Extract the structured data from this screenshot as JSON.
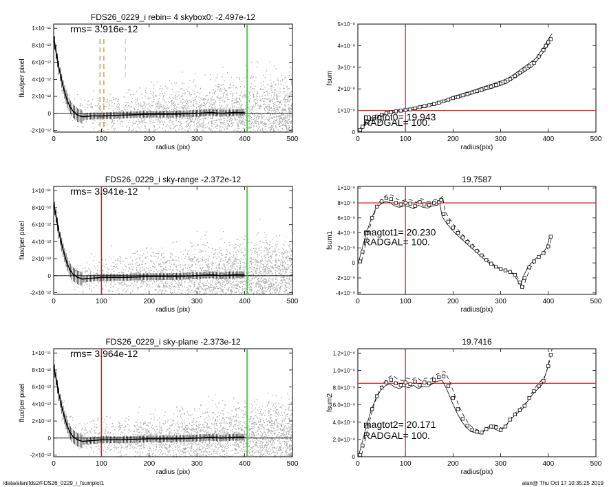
{
  "footer": {
    "path": "/data/alan/fds2/FDS26_0229_i_fsumplot1",
    "stamp": "alan@  Thu Oct 17 10:35:25 2019"
  },
  "colors": {
    "scatter": "#a8a8a8",
    "profile": "#000000",
    "red_line": "#e02020",
    "green_line": "#22cc22",
    "orange_dash": "#e8a050"
  },
  "chart_data": [
    {
      "id": "profile1",
      "type": "scatter",
      "title": "FDS26_0229_i rebin= 4    skybox0: -2.497e-12",
      "annotation": "rms= 3.916e-12",
      "xlabel": "radius (pix)",
      "ylabel": "flux/per pixel",
      "xlim": [
        0,
        500
      ],
      "ylim": [
        -2.2e-12,
        1.05e-11
      ],
      "xticks": [
        0,
        100,
        200,
        300,
        400,
        500
      ],
      "yticks": [
        -2e-12,
        0,
        2e-12,
        4e-12,
        6e-12,
        8e-12,
        1e-11
      ],
      "ytick_labels": [
        "-2×10⁻¹²",
        "0",
        "2×10⁻¹²",
        "4×10⁻¹²",
        "6×10⁻¹²",
        "8×10⁻¹²",
        "1×10⁻¹¹"
      ],
      "profile": {
        "x": [
          0,
          5,
          10,
          15,
          20,
          25,
          30,
          35,
          40,
          50,
          60,
          80,
          100,
          150,
          200,
          250,
          300,
          330,
          350,
          380,
          400
        ],
        "y": [
          9e-12,
          7.2e-12,
          5.6e-12,
          4.3e-12,
          3.1e-12,
          2.1e-12,
          1.3e-12,
          7e-13,
          3e-13,
          -2e-13,
          -4e-13,
          -3e-13,
          -3e-13,
          -2e-13,
          -1e-13,
          -1e-13,
          0,
          1e-13,
          0,
          1e-13,
          1e-13
        ]
      },
      "vlines": [
        {
          "x": 405,
          "color": "green",
          "style": "solid"
        },
        {
          "x": 97,
          "color": "orange",
          "style": "dashed"
        },
        {
          "x": 105,
          "color": "orange",
          "style": "dashed"
        },
        {
          "x": 150,
          "color": "gray",
          "style": "dashed"
        }
      ]
    },
    {
      "id": "fsum",
      "type": "scatter",
      "title": "",
      "xlabel": "radius(pix)",
      "ylabel": "fsum",
      "xlim": [
        0,
        500
      ],
      "ylim": [
        0,
        5e-08
      ],
      "xticks": [
        0,
        100,
        200,
        300,
        400,
        500
      ],
      "yticks": [
        0,
        1e-08,
        2e-08,
        3e-08,
        4e-08,
        5e-08
      ],
      "ytick_labels": [
        "0",
        "1×10⁻⁸",
        "2×10⁻⁸",
        "3×10⁻⁸",
        "4×10⁻⁸",
        "5×10⁻⁸"
      ],
      "text1": "magtot0=  19.943",
      "text2": "RADGAL=    100.",
      "points": {
        "x": [
          5,
          10,
          20,
          30,
          40,
          50,
          60,
          70,
          80,
          90,
          100,
          110,
          120,
          130,
          140,
          150,
          160,
          170,
          180,
          190,
          200,
          210,
          220,
          230,
          240,
          250,
          260,
          270,
          280,
          290,
          300,
          310,
          320,
          330,
          340,
          350,
          360,
          370,
          380,
          390,
          395,
          400,
          405
        ],
        "y": [
          1e-09,
          2.5e-09,
          4.5e-09,
          6e-09,
          7.2e-09,
          8e-09,
          8.7e-09,
          9.2e-09,
          9.6e-09,
          9.9e-09,
          1.02e-08,
          1.05e-08,
          1.1e-08,
          1.15e-08,
          1.2e-08,
          1.24e-08,
          1.3e-08,
          1.36e-08,
          1.42e-08,
          1.5e-08,
          1.58e-08,
          1.63e-08,
          1.7e-08,
          1.76e-08,
          1.83e-08,
          1.9e-08,
          1.97e-08,
          2.04e-08,
          2.1e-08,
          2.18e-08,
          2.25e-08,
          2.33e-08,
          2.45e-08,
          2.6e-08,
          2.75e-08,
          2.9e-08,
          3.05e-08,
          3.2e-08,
          3.5e-08,
          3.8e-08,
          4e-08,
          4.15e-08,
          4.3e-08
        ]
      },
      "hline": 1e-08,
      "vline": 100
    },
    {
      "id": "profile2",
      "type": "scatter",
      "title": "FDS26_0229_i sky-range -2.372e-12",
      "annotation": "rms= 3.941e-12",
      "xlabel": "radius (pix)",
      "ylabel": "flux/per pixel",
      "xlim": [
        0,
        500
      ],
      "ylim": [
        -2.2e-12,
        1.05e-11
      ],
      "xticks": [
        0,
        100,
        200,
        300,
        400,
        500
      ],
      "yticks": [
        -2e-12,
        0,
        2e-12,
        4e-12,
        6e-12,
        8e-12,
        1e-11
      ],
      "ytick_labels": [
        "-2×10⁻¹²",
        "0",
        "2×10⁻¹²",
        "4×10⁻¹²",
        "6×10⁻¹²",
        "8×10⁻¹²",
        "1×10⁻¹¹"
      ],
      "profile": {
        "x": [
          0,
          5,
          10,
          15,
          20,
          25,
          30,
          35,
          40,
          50,
          60,
          80,
          100,
          150,
          200,
          250,
          300,
          330,
          350,
          380,
          400
        ],
        "y": [
          8.5e-12,
          7e-12,
          5.4e-12,
          4.1e-12,
          3e-12,
          2e-12,
          1.2e-12,
          6e-13,
          2e-13,
          -2e-13,
          -4e-13,
          -3e-13,
          -2e-13,
          -2e-13,
          -1e-13,
          -1e-13,
          0,
          1e-13,
          0,
          1e-13,
          1e-13
        ]
      },
      "vlines": [
        {
          "x": 405,
          "color": "green",
          "style": "solid"
        },
        {
          "x": 100,
          "color": "red",
          "style": "solid"
        }
      ]
    },
    {
      "id": "fsum1",
      "type": "scatter",
      "title": "19.7587",
      "xlabel": "radius(pix)",
      "ylabel": "fsum1",
      "xlim": [
        0,
        500
      ],
      "ylim": [
        -4.2e-09,
        1.02e-08
      ],
      "xticks": [
        0,
        100,
        200,
        300,
        400,
        500
      ],
      "yticks": [
        -4e-09,
        -2e-09,
        0,
        2e-09,
        4e-09,
        6e-09,
        8e-09,
        1e-08
      ],
      "ytick_labels": [
        "-4×10⁻⁹",
        "-2×10⁻⁹",
        "0",
        "2×10⁻⁹",
        "4×10⁻⁹",
        "6×10⁻⁹",
        "8×10⁻⁹",
        "1×10⁻⁸"
      ],
      "text1": "magtot1=  20.230",
      "text2": "RADGAL=    100.",
      "points": {
        "x": [
          5,
          10,
          20,
          30,
          40,
          50,
          60,
          70,
          80,
          90,
          100,
          110,
          120,
          130,
          140,
          150,
          160,
          170,
          175,
          180,
          190,
          200,
          210,
          220,
          230,
          240,
          250,
          260,
          270,
          280,
          290,
          300,
          310,
          320,
          330,
          340,
          345,
          350,
          360,
          370,
          380,
          390,
          400,
          405
        ],
        "y": [
          2e-10,
          1.5e-09,
          4e-09,
          6e-09,
          7.5e-09,
          8.2e-09,
          8.6e-09,
          8.5e-09,
          8e-09,
          7.8e-09,
          8e-09,
          7.9e-09,
          7.6e-09,
          8.1e-09,
          7.8e-09,
          7.7e-09,
          8e-09,
          8.1e-09,
          8.4e-09,
          6.5e-09,
          5.5e-09,
          4.7e-09,
          4e-09,
          3.4e-09,
          2.8e-09,
          2.2e-09,
          1.6e-09,
          1e-09,
          4e-10,
          -1e-10,
          -5e-10,
          -8e-10,
          -1e-09,
          -1.2e-09,
          -1.6e-09,
          -2.6e-09,
          -3.2e-09,
          -2e-09,
          -6e-10,
          2e-10,
          8e-10,
          1.3e-09,
          2.2e-09,
          3.5e-09
        ]
      },
      "hline": 8e-09,
      "vline": 100
    },
    {
      "id": "profile3",
      "type": "scatter",
      "title": "FDS26_0229_i sky-plane -2.373e-12",
      "annotation": "rms= 3.964e-12",
      "xlabel": "radius (pix)",
      "ylabel": "flux/per pixel",
      "xlim": [
        0,
        500
      ],
      "ylim": [
        -2.2e-12,
        1.05e-11
      ],
      "xticks": [
        0,
        100,
        200,
        300,
        400,
        500
      ],
      "yticks": [
        -2e-12,
        0,
        2e-12,
        4e-12,
        6e-12,
        8e-12,
        1e-11
      ],
      "ytick_labels": [
        "-2×10⁻¹²",
        "0",
        "2×10⁻¹²",
        "4×10⁻¹²",
        "6×10⁻¹²",
        "8×10⁻¹²",
        "1×10⁻¹¹"
      ],
      "profile": {
        "x": [
          0,
          5,
          10,
          15,
          20,
          25,
          30,
          35,
          40,
          50,
          60,
          80,
          100,
          150,
          200,
          250,
          300,
          330,
          350,
          380,
          400
        ],
        "y": [
          8.5e-12,
          7e-12,
          5.4e-12,
          4.1e-12,
          3e-12,
          2e-12,
          1.2e-12,
          6e-13,
          2e-13,
          -2e-13,
          -4e-13,
          -3e-13,
          -2e-13,
          -2e-13,
          -1e-13,
          -1e-13,
          0,
          1e-13,
          0,
          1e-13,
          1e-13
        ]
      },
      "vlines": [
        {
          "x": 405,
          "color": "green",
          "style": "solid"
        },
        {
          "x": 100,
          "color": "red",
          "style": "solid"
        }
      ]
    },
    {
      "id": "fsum2",
      "type": "scatter",
      "title": "19.7416",
      "xlabel": "radius(pix)",
      "ylabel": "fsum2",
      "xlim": [
        0,
        500
      ],
      "ylim": [
        0,
        1.25e-08
      ],
      "xticks": [
        0,
        100,
        200,
        300,
        400,
        500
      ],
      "yticks": [
        0,
        2e-09,
        4e-09,
        6e-09,
        8e-09,
        1e-08,
        1.2e-08
      ],
      "ytick_labels": [
        "0",
        "2.0×10⁻⁹",
        "4.0×10⁻⁹",
        "6.0×10⁻⁹",
        "8.0×10⁻⁹",
        "1.0×10⁻⁸",
        "1.2×10⁻⁸"
      ],
      "text1": "magtot2=  20.171",
      "text2": "RADGAL=    100.",
      "points": {
        "x": [
          5,
          10,
          20,
          30,
          40,
          50,
          60,
          70,
          80,
          90,
          100,
          110,
          120,
          130,
          140,
          150,
          160,
          170,
          180,
          190,
          200,
          210,
          220,
          230,
          240,
          250,
          260,
          270,
          280,
          290,
          300,
          310,
          320,
          330,
          340,
          350,
          360,
          370,
          380,
          390,
          400,
          405
        ],
        "y": [
          2e-10,
          1.3e-09,
          3.5e-09,
          5.5e-09,
          7e-09,
          8e-09,
          8.6e-09,
          8.9e-09,
          8.5e-09,
          8.3e-09,
          8.6e-09,
          8.4e-09,
          8.7e-09,
          8.3e-09,
          8.6e-09,
          8.5e-09,
          8.9e-09,
          9.2e-09,
          9.3e-09,
          8.2e-09,
          6.8e-09,
          5.5e-09,
          4.4e-09,
          3.6e-09,
          3.1e-09,
          2.9e-09,
          2.8e-09,
          3.2e-09,
          3.5e-09,
          3.4e-09,
          3.1e-09,
          3.5e-09,
          4.3e-09,
          4.9e-09,
          5.4e-09,
          5.9e-09,
          6.8e-09,
          7.6e-09,
          8.2e-09,
          8.8e-09,
          1.05e-08,
          1.18e-08
        ]
      },
      "hline": 8.5e-09,
      "vline": 100
    }
  ]
}
